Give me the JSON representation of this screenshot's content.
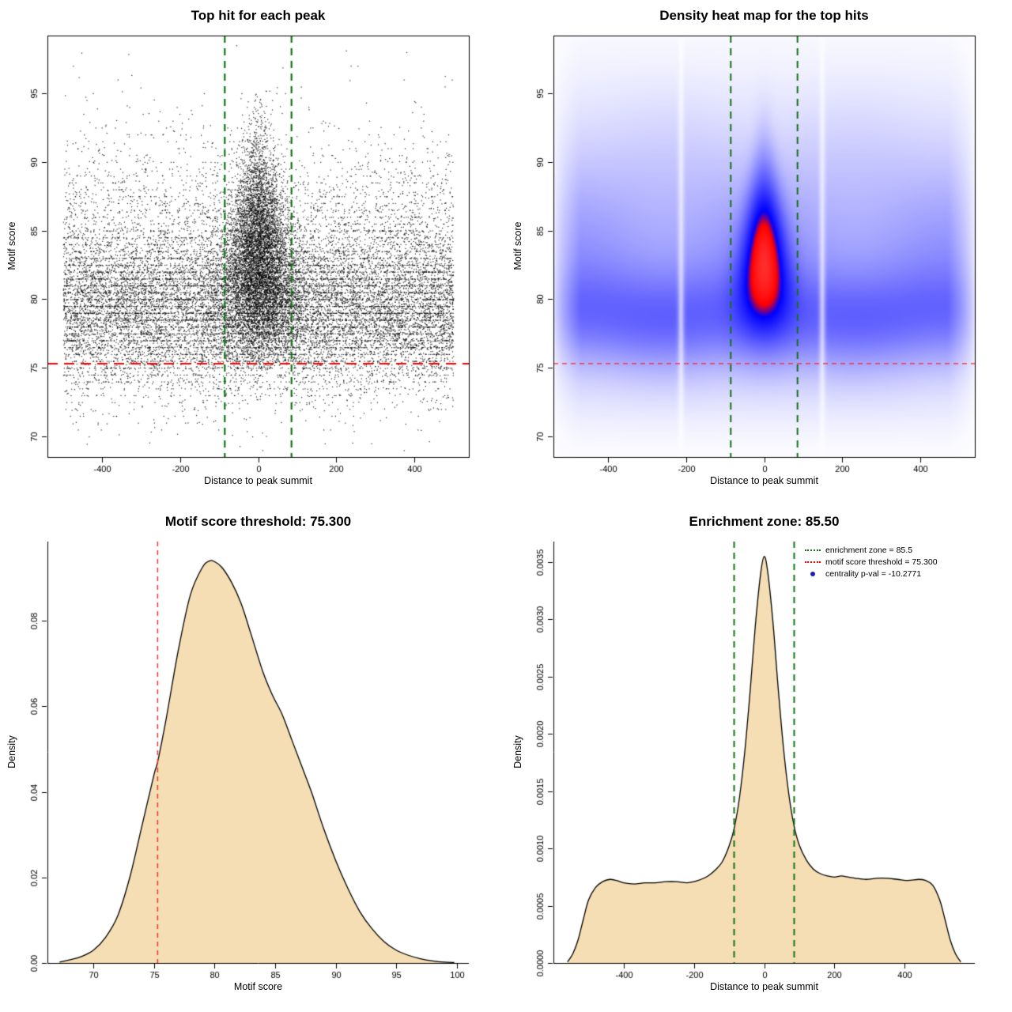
{
  "page": {
    "background": "#ffffff"
  },
  "chart_data": [
    {
      "type": "scatter",
      "title": "Top hit for each peak",
      "xlabel": "Distance to peak summit",
      "ylabel": "Motif score",
      "xlim": [
        -540,
        540
      ],
      "ylim": [
        68.5,
        99.2
      ],
      "xticks": [
        -400,
        -200,
        0,
        200,
        400
      ],
      "xtick_labels": [
        "-400",
        "-200",
        "0",
        "200",
        "400"
      ],
      "yticks": [
        70,
        75,
        80,
        85,
        90,
        95
      ],
      "ytick_labels": [
        "70",
        "75",
        "80",
        "85",
        "90",
        "95"
      ],
      "box": true,
      "grid": false,
      "point_color": "#000000",
      "hline": {
        "y": 75.3,
        "color": "#ff0000",
        "dash": [
          13,
          8
        ],
        "width": 2
      },
      "vlines": {
        "x": [
          -85.5,
          85.5
        ],
        "color": "#147314",
        "dash": [
          9,
          7
        ],
        "width": 2.2
      },
      "points": {
        "seed": 42,
        "n_background": 17000,
        "n_central": 7500,
        "background_y": [
          {
            "w": 0.8,
            "mu": 79.3,
            "sd": 3.0
          },
          {
            "w": 0.2,
            "mu": 84.5,
            "sd": 4.3
          }
        ],
        "quantize_frac": 0.3,
        "central": {
          "y_mu": 82.6,
          "y_sd": 4.0,
          "x_sd_base": 60,
          "x_sd_slope": 2.6,
          "x_sd_min": 15,
          "x_ref_y": 77
        }
      }
    },
    {
      "type": "heatmap",
      "title": "Density heat map for the top hits",
      "xlabel": "Distance to peak summit",
      "ylabel": "Motif score",
      "xlim": [
        -540,
        540
      ],
      "ylim": [
        68.5,
        99.2
      ],
      "xticks": [
        -400,
        -200,
        0,
        200,
        400
      ],
      "xtick_labels": [
        "-400",
        "-200",
        "0",
        "200",
        "400"
      ],
      "yticks": [
        70,
        75,
        80,
        85,
        90,
        95
      ],
      "ytick_labels": [
        "70",
        "75",
        "80",
        "85",
        "90",
        "95"
      ],
      "box": true,
      "hline": {
        "y": 75.3,
        "color": "#ff2222",
        "dash": [
          6,
          5
        ],
        "width": 1.3
      },
      "vlines": {
        "x": [
          -85.5,
          85.5
        ],
        "color": "#147314",
        "dash": [
          9,
          7
        ],
        "width": 2
      },
      "density": {
        "background_weight": 0.3,
        "background_y": [
          {
            "w": 0.9,
            "mu": 78.6,
            "sd": 2.3
          },
          {
            "w": 0.5,
            "mu": 82.0,
            "sd": 4.0
          },
          {
            "w": 0.22,
            "mu": 88.0,
            "sd": 4.5
          },
          {
            "w": 0.05,
            "mu": 73.5,
            "sd": 2.0
          }
        ],
        "central": {
          "y_mu": 82.8,
          "y_sd_low": 3.2,
          "y_sd_high": 3.9,
          "x_sd_base": 48,
          "x_sd_slope": 2.2,
          "x_sd_min": 16,
          "x_ref_y": 78
        },
        "edge_fade_start": 470,
        "edge_fade_end": 545,
        "artifact_gaps_x": [
          -213,
          149
        ],
        "gamma": 0.65,
        "colors": {
          "low": "#ffffff",
          "mid": "#0000ff",
          "high": "#ff0000",
          "blue_end": 0.75,
          "red_start": 0.85
        }
      }
    },
    {
      "type": "density",
      "title": "Motif score threshold: 75.300",
      "xlabel": "Motif score",
      "ylabel": "Density",
      "xlim": [
        66.2,
        101
      ],
      "ylim": [
        0,
        0.0985
      ],
      "xticks": [
        70,
        75,
        80,
        85,
        90,
        95,
        100
      ],
      "xtick_labels": [
        "70",
        "75",
        "80",
        "85",
        "90",
        "95",
        "100"
      ],
      "yticks": [
        0,
        0.02,
        0.04,
        0.06,
        0.08
      ],
      "ytick_labels": [
        "0.00",
        "0.02",
        "0.04",
        "0.06",
        "0.08"
      ],
      "box": false,
      "fill": "#f5deb3",
      "stroke": "#000000",
      "vlines": {
        "x": [
          75.3
        ],
        "color": "#ee3333",
        "dash": [
          6,
          5
        ],
        "width": 1.5
      },
      "curve": {
        "x": [
          67.2,
          68,
          69,
          70,
          71,
          72,
          73,
          74,
          75,
          75.3,
          76,
          77,
          78,
          79,
          79.6,
          80,
          80.6,
          81.4,
          82.2,
          83,
          84,
          84.8,
          85.6,
          86.4,
          87.2,
          88,
          89,
          90,
          91,
          92,
          93,
          94,
          95,
          96,
          97,
          98,
          99,
          99.8
        ],
        "y": [
          0.0002,
          0.0007,
          0.0015,
          0.003,
          0.006,
          0.011,
          0.02,
          0.032,
          0.044,
          0.047,
          0.057,
          0.073,
          0.086,
          0.0925,
          0.094,
          0.0938,
          0.0925,
          0.089,
          0.084,
          0.077,
          0.068,
          0.0625,
          0.058,
          0.052,
          0.046,
          0.04,
          0.0315,
          0.024,
          0.0175,
          0.012,
          0.008,
          0.005,
          0.003,
          0.0018,
          0.001,
          0.0005,
          0.0002,
          0.0001
        ]
      }
    },
    {
      "type": "density",
      "title": "Enrichment zone: 85.50",
      "xlabel": "Distance to peak summit",
      "ylabel": "Density",
      "xlim": [
        -600,
        600
      ],
      "ylim": [
        0,
        0.00368
      ],
      "xticks": [
        -400,
        -200,
        0,
        200,
        400
      ],
      "xtick_labels": [
        "-400",
        "-200",
        "0",
        "200",
        "400"
      ],
      "yticks": [
        0,
        0.0005,
        0.001,
        0.0015,
        0.002,
        0.0025,
        0.003,
        0.0035
      ],
      "ytick_labels": [
        "0.0000",
        "0.0005",
        "0.0010",
        "0.0015",
        "0.0020",
        "0.0025",
        "0.0030",
        "0.0035"
      ],
      "box": false,
      "fill": "#f5deb3",
      "stroke": "#000000",
      "vlines": {
        "x": [
          -85.5,
          85.5
        ],
        "color": "#147314",
        "dash": [
          8,
          6
        ],
        "width": 2
      },
      "curve": {
        "x": [
          -560,
          -545,
          -530,
          -515,
          -500,
          -480,
          -460,
          -440,
          -420,
          -400,
          -370,
          -340,
          -310,
          -280,
          -250,
          -220,
          -200,
          -180,
          -160,
          -140,
          -120,
          -100,
          -85,
          -70,
          -55,
          -40,
          -25,
          -10,
          0,
          10,
          25,
          40,
          55,
          70,
          85,
          100,
          120,
          140,
          160,
          180,
          200,
          220,
          240,
          260,
          290,
          320,
          350,
          380,
          410,
          440,
          460,
          480,
          500,
          515,
          530,
          545,
          560
        ],
        "y": [
          1e-05,
          8e-05,
          0.0002,
          0.00038,
          0.00055,
          0.00066,
          0.00071,
          0.00073,
          0.00072,
          0.0007,
          0.00069,
          0.0007,
          0.0007,
          0.00071,
          0.00071,
          0.0007,
          0.00071,
          0.00073,
          0.00076,
          0.00081,
          0.00088,
          0.00102,
          0.00118,
          0.00145,
          0.00185,
          0.00237,
          0.00295,
          0.0034,
          0.00355,
          0.00342,
          0.00298,
          0.0024,
          0.00188,
          0.00148,
          0.0012,
          0.00103,
          0.0009,
          0.00082,
          0.00078,
          0.00076,
          0.00075,
          0.00076,
          0.00075,
          0.00074,
          0.00073,
          0.00074,
          0.00074,
          0.00073,
          0.00072,
          0.00073,
          0.00072,
          0.00068,
          0.00055,
          0.00038,
          0.0002,
          8e-05,
          1e-05
        ]
      },
      "legend": {
        "items": [
          {
            "symbol": "dotted-line",
            "color": "#147314",
            "label": "enrichment zone = 85.5"
          },
          {
            "symbol": "dotted-line",
            "color": "#ff0000",
            "label": "motif score threshold = 75.300"
          },
          {
            "symbol": "point",
            "color": "#1f1fbf",
            "label": "centrality p-val = -10.2771"
          }
        ]
      }
    }
  ]
}
